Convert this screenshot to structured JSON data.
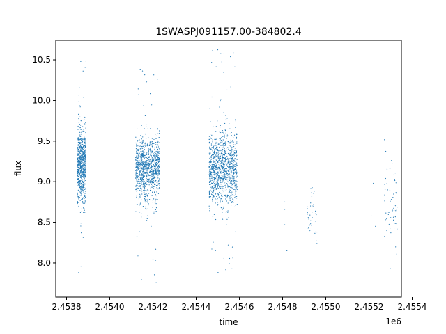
{
  "chart_data": {
    "type": "scatter",
    "title": "1SWASPJ091157.00-384802.4",
    "xlabel": "time",
    "ylabel": "flux",
    "x_offset_label": "1e6",
    "xlim": [
      2.45375,
      2.45535
    ],
    "ylim": [
      7.58,
      10.74
    ],
    "x_ticks": [
      {
        "value": 2.4538,
        "label": "2.4538"
      },
      {
        "value": 2.454,
        "label": "2.4540"
      },
      {
        "value": 2.4542,
        "label": "2.4542"
      },
      {
        "value": 2.4544,
        "label": "2.4544"
      },
      {
        "value": 2.4546,
        "label": "2.4546"
      },
      {
        "value": 2.4548,
        "label": "2.4548"
      },
      {
        "value": 2.455,
        "label": "2.4550"
      },
      {
        "value": 2.4552,
        "label": "2.4552"
      },
      {
        "value": 2.4554,
        "label": "2.4554"
      }
    ],
    "y_ticks": [
      {
        "value": 8.0,
        "label": "8.0"
      },
      {
        "value": 8.5,
        "label": "8.5"
      },
      {
        "value": 9.0,
        "label": "9.0"
      },
      {
        "value": 9.5,
        "label": "9.5"
      },
      {
        "value": 10.0,
        "label": "10.0"
      },
      {
        "value": 10.5,
        "label": "10.5"
      }
    ],
    "grid": false,
    "marker_color": "#1f77b4",
    "clusters": [
      {
        "x_range": [
          2.45385,
          2.45389
        ],
        "y_center": 9.2,
        "y_spread": 0.22,
        "y_min": 7.78,
        "y_max": 10.6,
        "count": 750
      },
      {
        "x_range": [
          2.45412,
          2.45423
        ],
        "y_center": 9.15,
        "y_spread": 0.2,
        "y_min": 7.75,
        "y_max": 10.5,
        "count": 1100
      },
      {
        "x_range": [
          2.45446,
          2.45459
        ],
        "y_center": 9.15,
        "y_spread": 0.22,
        "y_min": 7.85,
        "y_max": 10.65,
        "count": 1200
      },
      {
        "x_range": [
          2.45491,
          2.45496
        ],
        "y_center": 8.6,
        "y_spread": 0.2,
        "y_min": 7.98,
        "y_max": 8.95,
        "count": 40
      },
      {
        "x_range": [
          2.45527,
          2.45533
        ],
        "y_center": 8.7,
        "y_spread": 0.3,
        "y_min": 7.9,
        "y_max": 9.65,
        "count": 60
      }
    ],
    "sparse_points": [
      {
        "x": 2.45481,
        "y": 8.75
      },
      {
        "x": 2.45481,
        "y": 8.66
      },
      {
        "x": 2.45481,
        "y": 8.47
      },
      {
        "x": 2.45482,
        "y": 8.15
      },
      {
        "x": 2.45521,
        "y": 8.58
      },
      {
        "x": 2.45522,
        "y": 8.98
      },
      {
        "x": 2.45523,
        "y": 8.45
      }
    ]
  }
}
